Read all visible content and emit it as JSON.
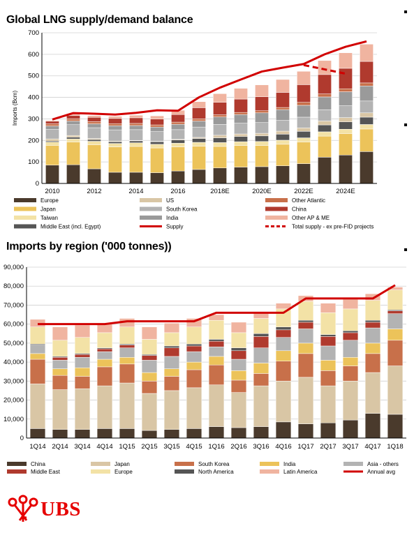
{
  "bullets": 3,
  "logo": {
    "text": "UBS",
    "icon": "ubs-keys-icon",
    "color": "#e60000"
  },
  "chart_data": [
    {
      "type": "bar",
      "stacked": true,
      "title": "Global LNG supply/demand balance",
      "ylabel": "Imports (Bcm)",
      "ylim": [
        0,
        700
      ],
      "yticks": [
        0,
        100,
        200,
        300,
        400,
        500,
        600,
        700
      ],
      "categories": [
        "2010",
        "2011",
        "2012",
        "2013",
        "2014",
        "2015",
        "2016",
        "2017",
        "2018E",
        "2019E",
        "2020E",
        "2021E",
        "2022E",
        "2023E",
        "2024E",
        "2025E"
      ],
      "xtick_labels": [
        "2010",
        "2012",
        "2014",
        "2016",
        "2018E",
        "2020E",
        "2022E",
        "2024E"
      ],
      "series": [
        {
          "name": "Europe",
          "color": "#4a3a2c",
          "values": [
            85,
            87,
            68,
            52,
            52,
            50,
            58,
            65,
            72,
            76,
            78,
            82,
            92,
            122,
            132,
            148
          ]
        },
        {
          "name": "Japan",
          "color": "#ecc35a",
          "values": [
            92,
            105,
            112,
            118,
            120,
            115,
            112,
            108,
            100,
            100,
            98,
            100,
            100,
            98,
            100,
            105
          ]
        },
        {
          "name": "Taiwan",
          "color": "#f3e2a6",
          "values": [
            15,
            15,
            16,
            16,
            17,
            17,
            17,
            18,
            18,
            18,
            19,
            19,
            20,
            20,
            20,
            21
          ]
        },
        {
          "name": "Middle East (incl. Egypt)",
          "color": "#555555",
          "values": [
            5,
            8,
            8,
            8,
            9,
            12,
            15,
            18,
            22,
            24,
            26,
            28,
            30,
            32,
            34,
            34
          ]
        },
        {
          "name": "US",
          "color": "#d9c6a5",
          "values": [
            10,
            8,
            5,
            3,
            2,
            2,
            3,
            5,
            12,
            12,
            12,
            14,
            16,
            18,
            20,
            20
          ]
        },
        {
          "name": "South Korea",
          "color": "#b3b3b3",
          "values": [
            45,
            50,
            50,
            52,
            50,
            45,
            45,
            48,
            50,
            50,
            50,
            50,
            50,
            52,
            55,
            55
          ]
        },
        {
          "name": "India",
          "color": "#9a9a9a",
          "values": [
            15,
            17,
            18,
            19,
            19,
            21,
            25,
            28,
            35,
            40,
            45,
            50,
            55,
            60,
            65,
            70
          ]
        },
        {
          "name": "Other Atlantic",
          "color": "#c8704a",
          "values": [
            10,
            10,
            10,
            10,
            10,
            10,
            10,
            10,
            10,
            10,
            10,
            10,
            14,
            14,
            14,
            14
          ]
        },
        {
          "name": "China",
          "color": "#b03a2e",
          "values": [
            12,
            16,
            20,
            24,
            26,
            27,
            35,
            52,
            58,
            62,
            65,
            70,
            82,
            90,
            95,
            100
          ]
        },
        {
          "name": "Other AP & ME",
          "color": "#f0b4a0",
          "values": [
            4,
            6,
            8,
            10,
            12,
            15,
            20,
            28,
            40,
            50,
            55,
            60,
            62,
            65,
            72,
            80
          ]
        }
      ],
      "lines": [
        {
          "name": "Supply",
          "color": "#d10000",
          "style": "solid",
          "values": [
            297,
            327,
            324,
            320,
            328,
            340,
            338,
            400,
            445,
            483,
            520,
            538,
            555,
            600,
            635,
            660
          ]
        },
        {
          "name": "Total supply - ex pre-FID projects",
          "color": "#d10000",
          "style": "dashed",
          "x_start": "2022E",
          "values": [
            550,
            530,
            510
          ]
        }
      ],
      "legend_order": [
        "Europe",
        "US",
        "Other Atlantic",
        "Japan",
        "South Korea",
        "China",
        "Taiwan",
        "India",
        "Other AP & ME",
        "Middle East (incl. Egypt)",
        "Supply",
        "Total supply - ex pre-FID projects"
      ],
      "legend_position": "bottom"
    },
    {
      "type": "bar",
      "stacked": true,
      "title": "Imports by region ('000 tonnes))",
      "ylim": [
        0,
        90000
      ],
      "yticks": [
        0,
        10000,
        20000,
        30000,
        40000,
        50000,
        60000,
        70000,
        80000,
        90000
      ],
      "ytick_labels": [
        "0",
        "10,000",
        "20,000",
        "30,000",
        "40,000",
        "50,000",
        "60,000",
        "70,000",
        "80,000",
        "90,000"
      ],
      "categories": [
        "1Q14",
        "2Q14",
        "3Q14",
        "4Q14",
        "1Q15",
        "2Q15",
        "3Q15",
        "4Q15",
        "1Q16",
        "2Q16",
        "3Q16",
        "4Q16",
        "1Q17",
        "2Q17",
        "3Q17",
        "4Q17",
        "1Q18"
      ],
      "series": [
        {
          "name": "China",
          "color": "#4a3a2c",
          "values": [
            5000,
            4500,
            4500,
            5000,
            5000,
            4000,
            4500,
            5000,
            6000,
            5500,
            6000,
            8500,
            7500,
            8000,
            9500,
            13000,
            12500
          ]
        },
        {
          "name": "Japan",
          "color": "#d9c6a5",
          "values": [
            23500,
            21000,
            21500,
            22500,
            24000,
            19500,
            20500,
            21500,
            22000,
            18500,
            21500,
            21500,
            24500,
            19500,
            20500,
            21500,
            25500
          ]
        },
        {
          "name": "South Korea",
          "color": "#c8704a",
          "values": [
            13000,
            7500,
            6500,
            10000,
            10000,
            6500,
            7500,
            9500,
            10500,
            6500,
            6500,
            10500,
            12500,
            8000,
            8000,
            10000,
            13500
          ]
        },
        {
          "name": "India",
          "color": "#ecc35a",
          "values": [
            3000,
            3500,
            4500,
            4000,
            3500,
            4500,
            4000,
            4000,
            4500,
            5000,
            5500,
            5500,
            5500,
            5500,
            4500,
            5500,
            6000
          ]
        },
        {
          "name": "Asia - others",
          "color": "#b3b3b3",
          "values": [
            4500,
            4500,
            5500,
            4000,
            5000,
            6500,
            6500,
            5500,
            5000,
            6000,
            8000,
            7000,
            7500,
            7500,
            9000,
            8000,
            8000
          ]
        },
        {
          "name": "Middle East",
          "color": "#b03a2e",
          "values": [
            0,
            1500,
            1500,
            1500,
            1500,
            2500,
            4500,
            3000,
            3000,
            4500,
            6000,
            4000,
            3500,
            5000,
            4000,
            3000,
            1500
          ]
        },
        {
          "name": "North America",
          "color": "#555555",
          "values": [
            500,
            500,
            500,
            500,
            500,
            500,
            1000,
            1000,
            1000,
            1500,
            1500,
            1500,
            1000,
            1000,
            1000,
            1000,
            500
          ]
        },
        {
          "name": "Europe",
          "color": "#f3e2a6",
          "values": [
            9000,
            8500,
            8500,
            8000,
            9000,
            8000,
            7000,
            9000,
            10000,
            8000,
            8000,
            9500,
            10000,
            11500,
            11500,
            10500,
            10500
          ]
        },
        {
          "name": "Latin America",
          "color": "#f0b4a0",
          "values": [
            4000,
            7000,
            6500,
            4500,
            4500,
            6500,
            5000,
            4500,
            3000,
            5500,
            3000,
            3000,
            3000,
            5000,
            5000,
            3500,
            1500
          ]
        }
      ],
      "lines": [
        {
          "name": "Annual avg",
          "color": "#d10000",
          "style": "solid",
          "values": [
            60000,
            60000,
            60000,
            60000,
            61500,
            61500,
            61500,
            61500,
            66000,
            66000,
            66000,
            66000,
            73500,
            73500,
            73500,
            73500,
            80500
          ]
        }
      ],
      "legend_order": [
        "China",
        "Japan",
        "South Korea",
        "India",
        "Asia - others",
        "Middle East",
        "Europe",
        "North America",
        "Latin America",
        "Annual avg"
      ],
      "legend_position": "bottom"
    }
  ]
}
